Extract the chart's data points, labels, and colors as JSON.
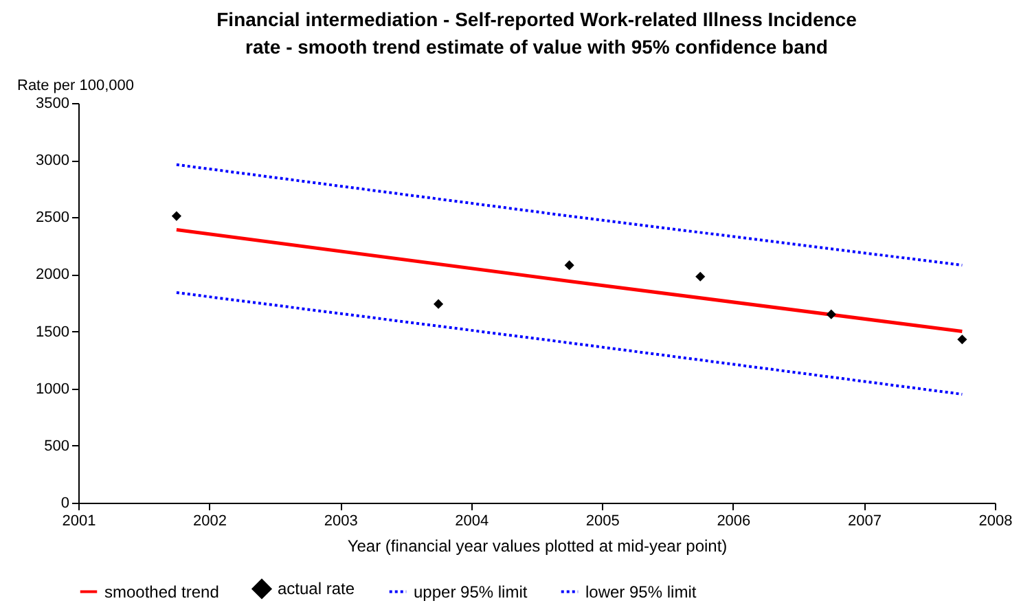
{
  "chart_data": {
    "type": "line",
    "title": "Financial intermediation - Self-reported Work-related Illness Incidence rate - smooth trend estimate of value with 95% confidence band",
    "ylabel": "Rate per 100,000",
    "xlabel": "Year (financial year values plotted at mid-year point)",
    "xlim": [
      2001,
      2008
    ],
    "xticks": [
      2001,
      2002,
      2003,
      2004,
      2005,
      2006,
      2007,
      2008
    ],
    "ylim": [
      0,
      3500
    ],
    "yticks": [
      0,
      500,
      1000,
      1500,
      2000,
      2500,
      3000,
      3500
    ],
    "grid": false,
    "legend": "bottom",
    "series": [
      {
        "name": "smoothed trend",
        "type": "line",
        "color": "#ff0000",
        "line_style": "solid",
        "x": [
          2001.75,
          2004.75,
          2007.75
        ],
        "values": [
          2390,
          1940,
          1500
        ]
      },
      {
        "name": "actual rate",
        "type": "scatter",
        "color": "#000000",
        "marker": "diamond",
        "x": [
          2001.75,
          2003.75,
          2004.75,
          2005.75,
          2006.75,
          2007.75
        ],
        "values": [
          2510,
          1740,
          2080,
          1980,
          1650,
          1430
        ]
      },
      {
        "name": "upper 95% limit",
        "type": "line",
        "color": "#0000ff",
        "line_style": "dotted",
        "x": [
          2001.75,
          2004.75,
          2007.75
        ],
        "values": [
          2960,
          2510,
          2080
        ]
      },
      {
        "name": "lower 95% limit",
        "type": "line",
        "color": "#0000ff",
        "line_style": "dotted",
        "x": [
          2001.75,
          2004.75,
          2007.75
        ],
        "values": [
          1840,
          1400,
          950
        ]
      }
    ]
  }
}
